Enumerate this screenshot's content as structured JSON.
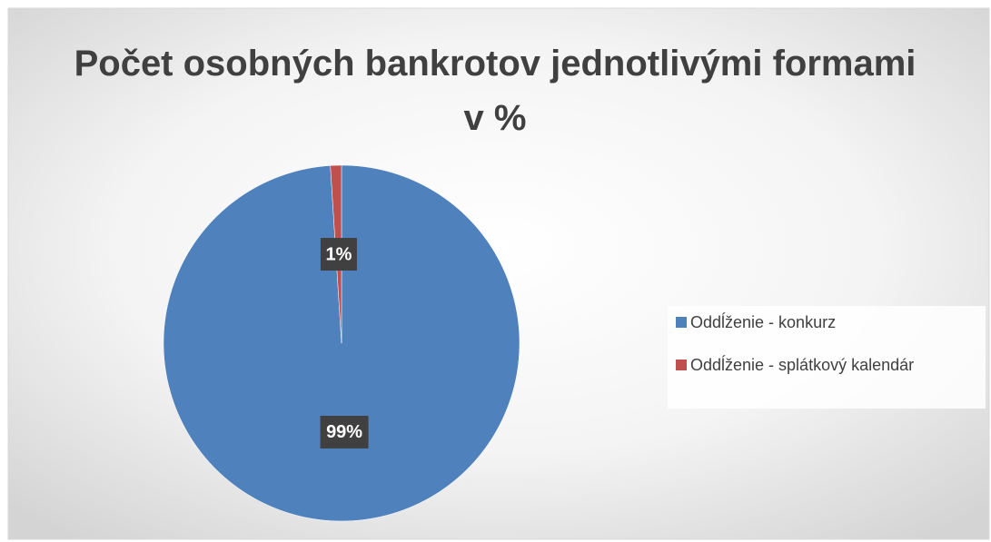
{
  "chart_data": {
    "type": "pie",
    "title": "Počet osobných bankrotov jednotlivými formami v %",
    "categories": [
      "Oddĺženie - konkurz",
      "Oddĺženie - splátkový kalendár"
    ],
    "values": [
      99,
      1
    ],
    "value_labels": [
      "99%",
      "1%"
    ],
    "colors": [
      "#4f81bd",
      "#c0504d"
    ],
    "legend": "right"
  }
}
